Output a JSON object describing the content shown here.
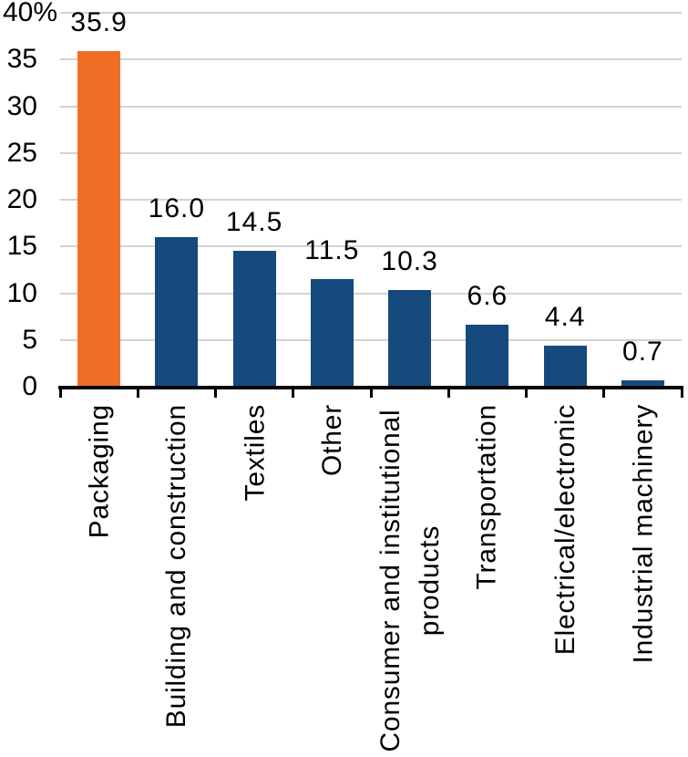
{
  "chart_data": {
    "type": "bar",
    "title": "",
    "xlabel": "",
    "ylabel": "",
    "categories": [
      "Packaging",
      "Building and construction",
      "Textiles",
      "Other",
      "Consumer and institutional products",
      "Transportation",
      "Electrical/electronic",
      "Industrial machinery"
    ],
    "values": [
      35.9,
      16.0,
      14.5,
      11.5,
      10.3,
      6.6,
      4.4,
      0.7
    ],
    "data_labels": [
      "35.9",
      "16.0",
      "14.5",
      "11.5",
      "10.3",
      "6.6",
      "4.4",
      "0.7"
    ],
    "bar_colors": [
      "#EE6E26",
      "#16497C",
      "#16497C",
      "#16497C",
      "#16497C",
      "#16497C",
      "#16497C",
      "#16497C"
    ],
    "highlight_index": 0,
    "y_axis": {
      "min": 0,
      "max": 40,
      "tick_step": 5,
      "unit": "%",
      "tick_labels_top_to_bottom": [
        "40%",
        "35",
        "30",
        "25",
        "20",
        "15",
        "10",
        "5",
        "0"
      ]
    },
    "ylim": [
      0,
      40
    ],
    "grid": true,
    "legend": false
  },
  "colors": {
    "highlight": "#EE6E26",
    "bar": "#16497C",
    "gridline": "#D2D2D2",
    "axis": "#000000",
    "text": "#000000",
    "background": "#FFFFFF"
  }
}
